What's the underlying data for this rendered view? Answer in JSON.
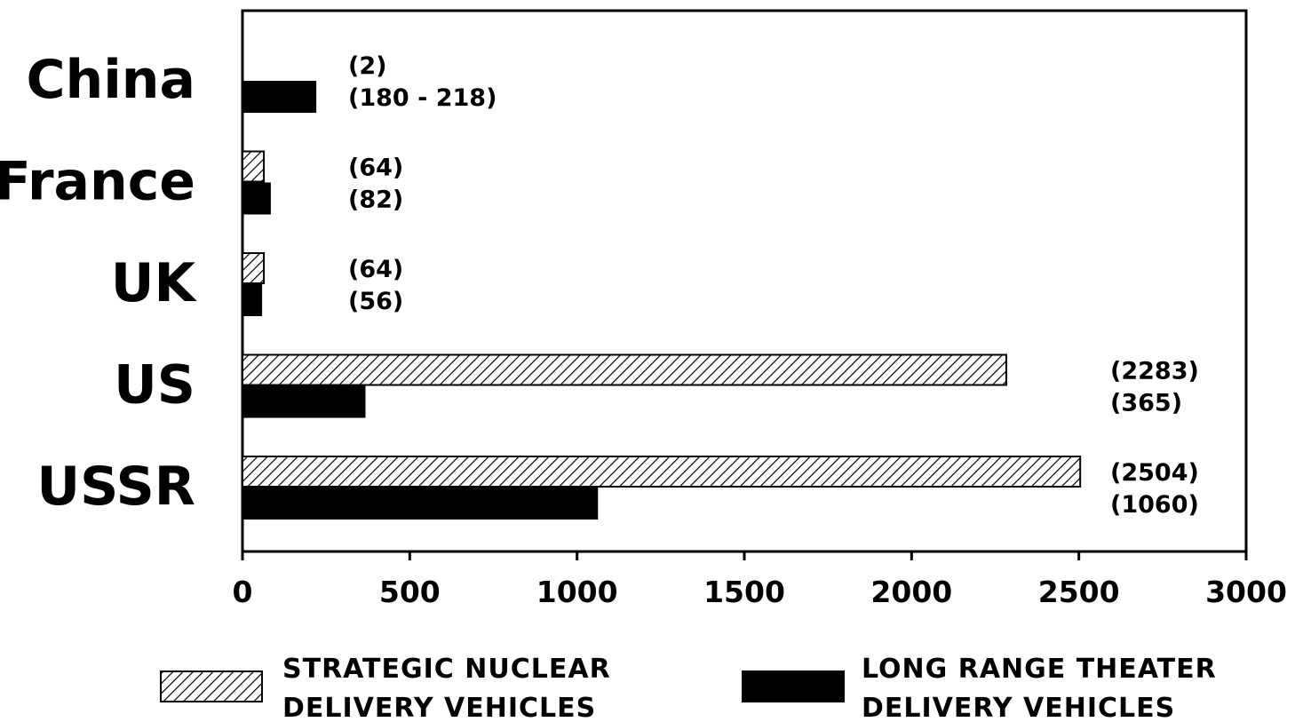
{
  "chart_data": {
    "type": "bar",
    "orientation": "horizontal",
    "categories": [
      "China",
      "France",
      "UK",
      "US",
      "USSR"
    ],
    "series": [
      {
        "name": "STRATEGIC NUCLEAR DELIVERY VEHICLES",
        "legend_lines": [
          "STRATEGIC NUCLEAR",
          "DELIVERY VEHICLES"
        ],
        "fill": "hatched",
        "color": "#000000",
        "values": [
          2,
          64,
          64,
          2283,
          2504
        ],
        "labels": [
          "(2)",
          "(64)",
          "(64)",
          "(2283)",
          "(2504)"
        ]
      },
      {
        "name": "LONG RANGE THEATER DELIVERY VEHICLES",
        "legend_lines": [
          "LONG RANGE THEATER",
          "DELIVERY VEHICLES"
        ],
        "fill": "solid",
        "color": "#000000",
        "values": [
          218,
          82,
          56,
          365,
          1060
        ],
        "labels": [
          "(180 - 218)",
          "(82)",
          "(56)",
          "(365)",
          "(1060)"
        ]
      }
    ],
    "xlim": [
      0,
      3000
    ],
    "xticks": [
      "0",
      "500",
      "1000",
      "1500",
      "2000",
      "2500",
      "3000"
    ],
    "legend_position": "bottom",
    "grid": false
  }
}
